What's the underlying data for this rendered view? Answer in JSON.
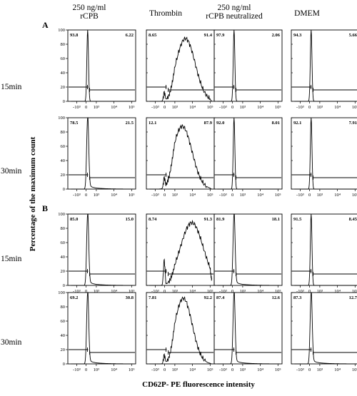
{
  "figure": {
    "column_headers": [
      [
        "250 ng/ml",
        "rCPB"
      ],
      [
        "Thrombin"
      ],
      [
        "250 ng/ml",
        "rCPB neutralized"
      ],
      [
        "DMEM"
      ]
    ],
    "section_labels": [
      "A",
      "B"
    ],
    "row_labels": [
      "15min",
      "30min",
      "15min",
      "30min"
    ],
    "y_axis_title": "Percentage of the maximum count",
    "x_axis_title": "CD62P- PE fluorescence intensity"
  },
  "chart_data": {
    "type": "histogram-grid",
    "rows": 4,
    "cols": 4,
    "x_ticks": [
      "-10³",
      "0",
      "10³",
      "10⁴",
      "10⁵"
    ],
    "y_ticks": [
      "0",
      "20",
      "40",
      "60",
      "80",
      "100"
    ],
    "ylim": [
      0,
      100
    ],
    "gate_percentages": [
      [
        [
          "93.8",
          "6.22"
        ],
        [
          "8.65",
          "91.4"
        ],
        [
          "97.9",
          "2.06"
        ],
        [
          "94.3",
          "5.66"
        ]
      ],
      [
        [
          "78.5",
          "21.5"
        ],
        [
          "12.1",
          "87.9"
        ],
        [
          "92.0",
          "8.01"
        ],
        [
          "92.1",
          "7.91"
        ]
      ],
      [
        [
          "85.0",
          "15.0"
        ],
        [
          "8.74",
          "91.3"
        ],
        [
          "81.9",
          "18.1"
        ],
        [
          "91.5",
          "8.45"
        ]
      ],
      [
        [
          "69.2",
          "30.8"
        ],
        [
          "7.81",
          "92.2"
        ],
        [
          "87.4",
          "12.6"
        ],
        [
          "87.3",
          "12.7"
        ]
      ]
    ],
    "histograms": {
      "narrow": {
        "center": 0.15,
        "width": 0.08,
        "peak": 100,
        "tail": 0
      },
      "narrow_tail": {
        "center": 0.15,
        "width": 0.1,
        "peak": 100,
        "tail": 6
      },
      "thrombin_a15": {
        "center": 3.0,
        "width": 0.55,
        "peak": 88,
        "shoulder": 12
      },
      "thrombin_a30": {
        "center": 2.7,
        "width": 0.55,
        "peak": 88,
        "shoulder": 14
      },
      "thrombin_b15": {
        "center": 3.6,
        "width": 0.65,
        "peak": 88,
        "shoulder": 35
      },
      "thrombin_b30": {
        "center": 2.8,
        "width": 0.5,
        "peak": 92,
        "shoulder": 12
      }
    },
    "panel_shapes": [
      [
        "narrow",
        "thrombin_a15",
        "narrow",
        "narrow"
      ],
      [
        "narrow_tail",
        "thrombin_a30",
        "narrow",
        "narrow"
      ],
      [
        "narrow_tail",
        "thrombin_b15",
        "narrow_tail",
        "narrow"
      ],
      [
        "narrow_tail",
        "thrombin_b30",
        "narrow_tail",
        "narrow_tail"
      ]
    ]
  }
}
